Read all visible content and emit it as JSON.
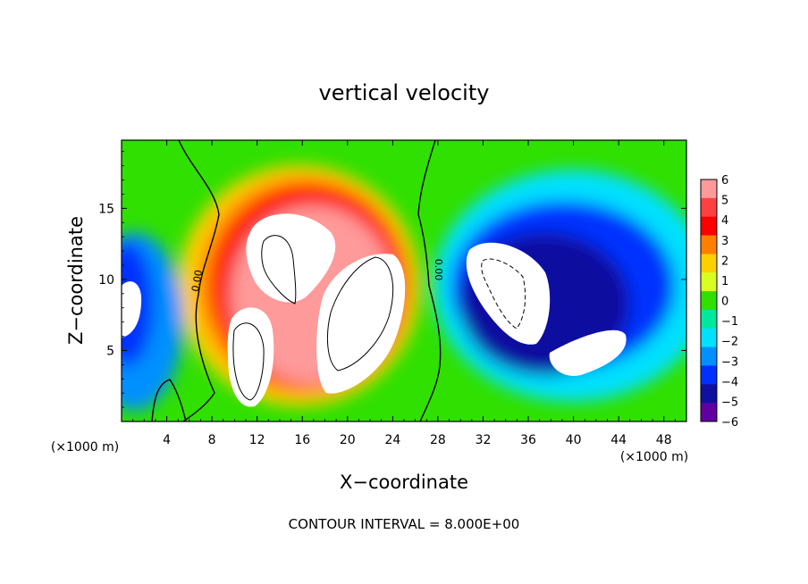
{
  "chart_data": {
    "type": "heatmap",
    "title": "vertical velocity",
    "xlabel": "X−coordinate",
    "ylabel": "Z−coordinate",
    "x_unit": "(×1000 m)",
    "x_unit_right": "(×1000 m)",
    "xlim": [
      0,
      50
    ],
    "ylim": [
      0,
      19.8
    ],
    "x_ticks": [
      4,
      8,
      12,
      16,
      20,
      24,
      28,
      32,
      36,
      40,
      44,
      48
    ],
    "y_ticks": [
      5,
      10,
      15
    ],
    "x_tick_labels": [
      "4",
      "8",
      "12",
      "16",
      "20",
      "24",
      "28",
      "32",
      "36",
      "40",
      "44",
      "48"
    ],
    "y_tick_labels": [
      "5",
      "10",
      "15"
    ],
    "colorbar": {
      "levels": [
        6,
        5,
        4,
        3,
        2,
        1,
        0,
        -1,
        -2,
        -3,
        -4,
        -5,
        -6
      ],
      "labels": [
        "6",
        "5",
        "4",
        "3",
        "2",
        "1",
        "0",
        "−1",
        "−2",
        "−3",
        "−4",
        "−5",
        "−6"
      ],
      "colors": [
        "#ff9a9a",
        "#ff4040",
        "#ff0000",
        "#ff8000",
        "#ffd000",
        "#d8ff20",
        "#30e000",
        "#00e8a0",
        "#00e0ff",
        "#0090ff",
        "#0030ff",
        "#1010a0",
        "#6000a0"
      ]
    },
    "updrafts": [
      {
        "x": 12.0,
        "z": 7.0,
        "w": 18
      },
      {
        "x": 16.5,
        "z": 11.5,
        "w": 16
      },
      {
        "x": 21.0,
        "z": 8.5,
        "w": 16
      }
    ],
    "downdrafts": [
      {
        "x": 35.0,
        "z": 10.0,
        "w": -14
      },
      {
        "x": 44.0,
        "z": 7.0,
        "w": -10
      },
      {
        "x": 2.0,
        "z": 8.0,
        "w": -8
      }
    ],
    "contour_labels": [
      "0.00",
      "0.00"
    ],
    "footer": "CONTOUR INTERVAL = 8.000E+00"
  }
}
